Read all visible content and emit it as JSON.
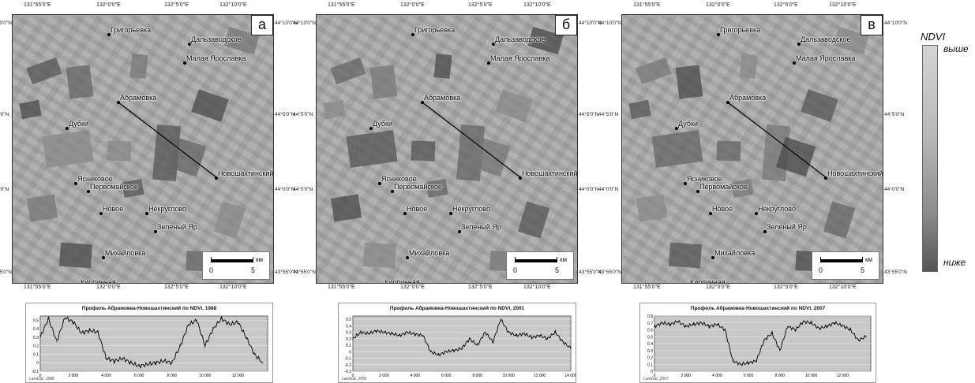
{
  "coords": {
    "top": [
      "131°55'0\"E",
      "132°0'0\"E",
      "132°5'0\"E",
      "132°10'0\"E"
    ],
    "bottom": [
      "131°55'0\"E",
      "132°0'0\"E",
      "132°5'0\"E",
      "132°10'0\"E"
    ],
    "left": [
      "44°10'0\"N",
      "44°5'0\"N",
      "44°0'0\"N",
      "43°55'0\"N"
    ],
    "right": [
      "44°10'0\"N",
      "44°5'0\"N",
      "44°0'0\"N",
      "43°55'0\"N"
    ]
  },
  "towns": [
    "Григорьевка",
    "Дальзаводское",
    "Малая Ярославка",
    "Абрамовка",
    "Дубки",
    "Новошахтинский",
    "Ясниковое",
    "Первомайское",
    "Новое",
    "Некруглово",
    "Зеленый Яр",
    "Михайловка",
    "Кирпичная"
  ],
  "scale": {
    "zero": "0",
    "five": "5",
    "unit": "км"
  },
  "panels": [
    {
      "letter": "а",
      "chart_title": "Профиль Абрамовка-Новошахтинский по NDVI, 1988",
      "credit": "Landsat, 1988"
    },
    {
      "letter": "б",
      "chart_title": "Профиль Абрамовка-Новошахтинский по NDVI, 2001",
      "credit": "Landsat, 2001"
    },
    {
      "letter": "в",
      "chart_title": "Профиль Абрамовка-Новошахтинский по NDVI, 2007",
      "credit": "Landsat, 2007"
    }
  ],
  "legend": {
    "title": "NDVI",
    "high": "выше",
    "low": "ниже",
    "top_color": "#d4d4d4",
    "bottom_color": "#555555"
  },
  "chart_data": [
    {
      "type": "line",
      "title": "Профиль Абрамовка-Новошахтинский по NDVI, 1988",
      "x": [
        0,
        500,
        1000,
        1500,
        2000,
        2500,
        3000,
        3500,
        4000,
        4500,
        5000,
        5500,
        6000,
        6500,
        7000,
        7500,
        8000,
        8500,
        9000,
        9500,
        10000,
        10500,
        11000,
        11500,
        12000,
        12500,
        13000,
        13500
      ],
      "y": [
        0.3,
        0.52,
        0.25,
        0.53,
        0.48,
        0.35,
        0.38,
        0.36,
        0.05,
        0.02,
        0.05,
        0.0,
        -0.04,
        -0.02,
        0.0,
        0.02,
        0.0,
        0.2,
        0.45,
        0.5,
        0.2,
        0.4,
        0.52,
        0.45,
        0.48,
        0.3,
        0.1,
        0.0
      ],
      "xticks": [
        "0",
        "2 000",
        "4 000",
        "6 000",
        "8 000",
        "10 000",
        "12 000"
      ],
      "yticks": [
        "-0.1",
        "0",
        "0.1",
        "0.2",
        "0.3",
        "0.4",
        "0.5"
      ],
      "xlim": [
        0,
        13800
      ],
      "ylim": [
        -0.1,
        0.55
      ]
    },
    {
      "type": "line",
      "title": "Профиль Абрамовка-Новошахтинский по NDVI, 2001",
      "x": [
        0,
        500,
        1000,
        1500,
        2000,
        2500,
        3000,
        3500,
        4000,
        4500,
        5000,
        5500,
        6000,
        6500,
        7000,
        7500,
        8000,
        8500,
        9000,
        9500,
        10000,
        10500,
        11000,
        11500,
        12000,
        12500,
        13000,
        13500,
        14000
      ],
      "y": [
        0.2,
        0.3,
        0.28,
        0.32,
        0.3,
        0.28,
        0.25,
        0.3,
        0.27,
        0.25,
        0.0,
        -0.05,
        0.0,
        0.02,
        0.05,
        0.2,
        0.1,
        0.3,
        0.15,
        0.5,
        0.3,
        0.25,
        0.28,
        0.22,
        0.25,
        0.2,
        0.3,
        0.15,
        0.05
      ],
      "xticks": [
        "0",
        "2 000",
        "4 000",
        "6 000",
        "8 000",
        "10 000",
        "12 000",
        "14 000"
      ],
      "yticks": [
        "-0.3",
        "-0.2",
        "-0.1",
        "0",
        "0.1",
        "0.2",
        "0.3",
        "0.4",
        "0.5"
      ],
      "xlim": [
        0,
        14000
      ],
      "ylim": [
        -0.3,
        0.55
      ]
    },
    {
      "type": "line",
      "title": "Профиль Абрамовка-Новошахтинский по NDVI, 2007",
      "x": [
        0,
        500,
        1000,
        1500,
        2000,
        2500,
        3000,
        3500,
        4000,
        4500,
        5000,
        5500,
        6000,
        6500,
        7000,
        7500,
        8000,
        8500,
        9000,
        9500,
        10000,
        10500,
        11000,
        11500,
        12000,
        12500,
        13000,
        13500
      ],
      "y": [
        0.65,
        0.7,
        0.68,
        0.72,
        0.65,
        0.68,
        0.7,
        0.65,
        0.68,
        0.6,
        0.15,
        0.1,
        0.12,
        0.15,
        0.45,
        0.55,
        0.3,
        0.65,
        0.6,
        0.72,
        0.7,
        0.62,
        0.65,
        0.7,
        0.66,
        0.6,
        0.45,
        0.5
      ],
      "xticks": [
        "0",
        "2 000",
        "4 000",
        "6 000",
        "8 000",
        "10 000",
        "12 000"
      ],
      "yticks": [
        "0",
        "0.1",
        "0.2",
        "0.3",
        "0.4",
        "0.5",
        "0.6",
        "0.7",
        "0.8"
      ],
      "xlim": [
        0,
        13800
      ],
      "ylim": [
        0,
        0.8
      ]
    }
  ]
}
